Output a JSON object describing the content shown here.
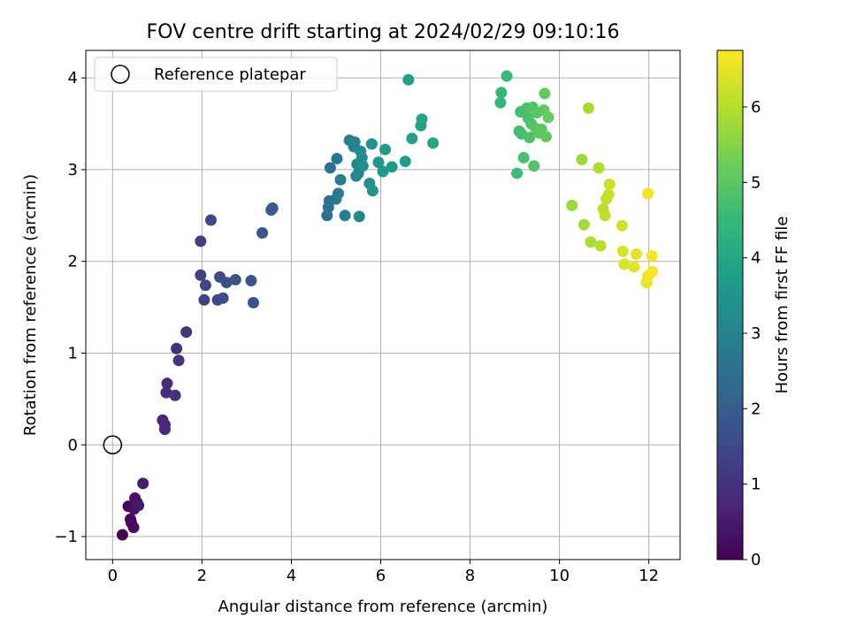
{
  "chart_data": {
    "type": "scatter",
    "title": "FOV centre drift starting at 2024/02/29 09:10:16",
    "xlabel": "Angular distance from reference (arcmin)",
    "ylabel": "Rotation from reference (arcmin)",
    "xlim": [
      -0.6,
      12.7
    ],
    "ylim": [
      -1.25,
      4.3
    ],
    "xticks": [
      0,
      2,
      4,
      6,
      8,
      10,
      12
    ],
    "yticks": [
      -1,
      0,
      1,
      2,
      3,
      4
    ],
    "xtick_labels": [
      "0",
      "2",
      "4",
      "6",
      "8",
      "10",
      "12"
    ],
    "ytick_labels": [
      "−1",
      "0",
      "1",
      "2",
      "3",
      "4"
    ],
    "grid": true,
    "legend": {
      "position": "top-left",
      "entries": [
        "Reference platepar"
      ]
    },
    "colorbar": {
      "label": "Hours from first FF file",
      "range": [
        0,
        6.75
      ],
      "ticks": [
        0,
        1,
        2,
        3,
        4,
        5,
        6
      ],
      "tick_labels": [
        "0",
        "1",
        "2",
        "3",
        "4",
        "5",
        "6"
      ],
      "colormap": "viridis",
      "colors": [
        "#440154",
        "#482878",
        "#3e4989",
        "#31688e",
        "#26828e",
        "#1f9e89",
        "#35b779",
        "#6ece58",
        "#b5de2b",
        "#fde725"
      ]
    },
    "reference_point": {
      "x": 0,
      "y": 0
    },
    "points": [
      {
        "x": 0.22,
        "y": -0.98,
        "t": 0.05
      },
      {
        "x": 0.35,
        "y": -0.67,
        "t": 0.1
      },
      {
        "x": 0.4,
        "y": -0.81,
        "t": 0.15
      },
      {
        "x": 0.42,
        "y": -0.85,
        "t": 0.2
      },
      {
        "x": 0.47,
        "y": -0.9,
        "t": 0.25
      },
      {
        "x": 0.48,
        "y": -0.7,
        "t": 0.3
      },
      {
        "x": 0.5,
        "y": -0.58,
        "t": 0.35
      },
      {
        "x": 0.55,
        "y": -0.63,
        "t": 0.4
      },
      {
        "x": 0.58,
        "y": -0.66,
        "t": 0.45
      },
      {
        "x": 0.68,
        "y": -0.42,
        "t": 0.55
      },
      {
        "x": 1.12,
        "y": 0.27,
        "t": 0.7
      },
      {
        "x": 1.17,
        "y": 0.22,
        "t": 0.75
      },
      {
        "x": 1.17,
        "y": 0.17,
        "t": 0.78
      },
      {
        "x": 1.2,
        "y": 0.57,
        "t": 0.82
      },
      {
        "x": 1.22,
        "y": 0.67,
        "t": 0.86
      },
      {
        "x": 1.4,
        "y": 0.54,
        "t": 0.9
      },
      {
        "x": 1.43,
        "y": 1.05,
        "t": 0.95
      },
      {
        "x": 1.48,
        "y": 0.92,
        "t": 1.0
      },
      {
        "x": 1.65,
        "y": 1.23,
        "t": 1.05
      },
      {
        "x": 1.97,
        "y": 1.85,
        "t": 1.25
      },
      {
        "x": 1.97,
        "y": 2.22,
        "t": 1.3
      },
      {
        "x": 2.05,
        "y": 1.58,
        "t": 1.35
      },
      {
        "x": 2.08,
        "y": 1.74,
        "t": 1.4
      },
      {
        "x": 2.2,
        "y": 2.45,
        "t": 1.45
      },
      {
        "x": 2.35,
        "y": 1.58,
        "t": 1.5
      },
      {
        "x": 2.4,
        "y": 1.83,
        "t": 1.55
      },
      {
        "x": 2.47,
        "y": 1.6,
        "t": 1.6
      },
      {
        "x": 2.55,
        "y": 1.77,
        "t": 1.65
      },
      {
        "x": 2.75,
        "y": 1.8,
        "t": 1.7
      },
      {
        "x": 3.1,
        "y": 1.79,
        "t": 1.75
      },
      {
        "x": 3.15,
        "y": 1.55,
        "t": 1.8
      },
      {
        "x": 3.35,
        "y": 2.31,
        "t": 1.85
      },
      {
        "x": 3.55,
        "y": 2.56,
        "t": 1.9
      },
      {
        "x": 3.58,
        "y": 2.58,
        "t": 1.95
      },
      {
        "x": 4.8,
        "y": 2.5,
        "t": 2.45
      },
      {
        "x": 4.83,
        "y": 2.59,
        "t": 2.5
      },
      {
        "x": 4.85,
        "y": 2.66,
        "t": 2.55
      },
      {
        "x": 4.87,
        "y": 3.02,
        "t": 2.6
      },
      {
        "x": 5.0,
        "y": 2.68,
        "t": 2.65
      },
      {
        "x": 5.02,
        "y": 3.12,
        "t": 2.7
      },
      {
        "x": 5.05,
        "y": 2.74,
        "t": 2.75
      },
      {
        "x": 5.1,
        "y": 2.89,
        "t": 2.8
      },
      {
        "x": 5.2,
        "y": 2.5,
        "t": 2.85
      },
      {
        "x": 5.3,
        "y": 3.32,
        "t": 2.9
      },
      {
        "x": 5.4,
        "y": 3.25,
        "t": 2.95
      },
      {
        "x": 5.42,
        "y": 3.3,
        "t": 3.0
      },
      {
        "x": 5.45,
        "y": 2.93,
        "t": 3.05
      },
      {
        "x": 5.47,
        "y": 3.06,
        "t": 3.1
      },
      {
        "x": 5.5,
        "y": 2.96,
        "t": 3.15
      },
      {
        "x": 5.52,
        "y": 2.49,
        "t": 3.2
      },
      {
        "x": 5.55,
        "y": 3.2,
        "t": 3.25
      },
      {
        "x": 5.58,
        "y": 3.13,
        "t": 3.3
      },
      {
        "x": 5.6,
        "y": 3.04,
        "t": 3.35
      },
      {
        "x": 5.75,
        "y": 2.85,
        "t": 3.4
      },
      {
        "x": 5.8,
        "y": 3.28,
        "t": 3.45
      },
      {
        "x": 5.82,
        "y": 2.77,
        "t": 3.5
      },
      {
        "x": 5.95,
        "y": 3.08,
        "t": 3.55
      },
      {
        "x": 6.05,
        "y": 2.98,
        "t": 3.6
      },
      {
        "x": 6.1,
        "y": 3.22,
        "t": 3.65
      },
      {
        "x": 6.25,
        "y": 3.03,
        "t": 3.7
      },
      {
        "x": 6.55,
        "y": 3.09,
        "t": 3.75
      },
      {
        "x": 6.62,
        "y": 3.98,
        "t": 3.8
      },
      {
        "x": 6.7,
        "y": 3.34,
        "t": 3.85
      },
      {
        "x": 6.9,
        "y": 3.48,
        "t": 3.9
      },
      {
        "x": 6.92,
        "y": 3.55,
        "t": 3.95
      },
      {
        "x": 7.17,
        "y": 3.29,
        "t": 4.0
      },
      {
        "x": 8.68,
        "y": 3.73,
        "t": 4.45
      },
      {
        "x": 8.7,
        "y": 3.84,
        "t": 4.5
      },
      {
        "x": 8.82,
        "y": 4.02,
        "t": 4.55
      },
      {
        "x": 9.05,
        "y": 2.96,
        "t": 4.6
      },
      {
        "x": 9.1,
        "y": 3.42,
        "t": 4.65
      },
      {
        "x": 9.13,
        "y": 3.63,
        "t": 4.7
      },
      {
        "x": 9.15,
        "y": 3.39,
        "t": 4.72
      },
      {
        "x": 9.2,
        "y": 3.13,
        "t": 4.75
      },
      {
        "x": 9.27,
        "y": 3.67,
        "t": 4.78
      },
      {
        "x": 9.3,
        "y": 3.56,
        "t": 4.8
      },
      {
        "x": 9.33,
        "y": 3.35,
        "t": 4.83
      },
      {
        "x": 9.37,
        "y": 3.5,
        "t": 4.86
      },
      {
        "x": 9.4,
        "y": 3.68,
        "t": 4.9
      },
      {
        "x": 9.43,
        "y": 3.04,
        "t": 4.92
      },
      {
        "x": 9.47,
        "y": 3.45,
        "t": 4.95
      },
      {
        "x": 9.5,
        "y": 3.62,
        "t": 4.97
      },
      {
        "x": 9.55,
        "y": 3.4,
        "t": 5.0
      },
      {
        "x": 9.6,
        "y": 3.44,
        "t": 5.02
      },
      {
        "x": 9.65,
        "y": 3.65,
        "t": 5.05
      },
      {
        "x": 9.67,
        "y": 3.83,
        "t": 5.08
      },
      {
        "x": 9.7,
        "y": 3.36,
        "t": 5.1
      },
      {
        "x": 9.75,
        "y": 3.57,
        "t": 5.12
      },
      {
        "x": 10.28,
        "y": 2.61,
        "t": 5.7
      },
      {
        "x": 10.5,
        "y": 3.11,
        "t": 5.75
      },
      {
        "x": 10.55,
        "y": 2.4,
        "t": 5.8
      },
      {
        "x": 10.65,
        "y": 3.67,
        "t": 5.85
      },
      {
        "x": 10.7,
        "y": 2.21,
        "t": 5.9
      },
      {
        "x": 10.88,
        "y": 3.02,
        "t": 5.95
      },
      {
        "x": 10.92,
        "y": 2.17,
        "t": 6.0
      },
      {
        "x": 10.98,
        "y": 2.57,
        "t": 6.05
      },
      {
        "x": 11.02,
        "y": 2.5,
        "t": 6.1
      },
      {
        "x": 11.05,
        "y": 2.68,
        "t": 6.15
      },
      {
        "x": 11.1,
        "y": 2.73,
        "t": 6.2
      },
      {
        "x": 11.12,
        "y": 2.84,
        "t": 6.25
      },
      {
        "x": 11.4,
        "y": 2.39,
        "t": 6.3
      },
      {
        "x": 11.42,
        "y": 2.11,
        "t": 6.35
      },
      {
        "x": 11.45,
        "y": 1.97,
        "t": 6.4
      },
      {
        "x": 11.67,
        "y": 1.94,
        "t": 6.45
      },
      {
        "x": 11.72,
        "y": 2.08,
        "t": 6.5
      },
      {
        "x": 11.95,
        "y": 1.77,
        "t": 6.55
      },
      {
        "x": 11.98,
        "y": 1.84,
        "t": 6.6
      },
      {
        "x": 11.98,
        "y": 2.74,
        "t": 6.62
      },
      {
        "x": 12.07,
        "y": 2.06,
        "t": 6.65
      },
      {
        "x": 12.08,
        "y": 1.89,
        "t": 6.7
      }
    ]
  }
}
